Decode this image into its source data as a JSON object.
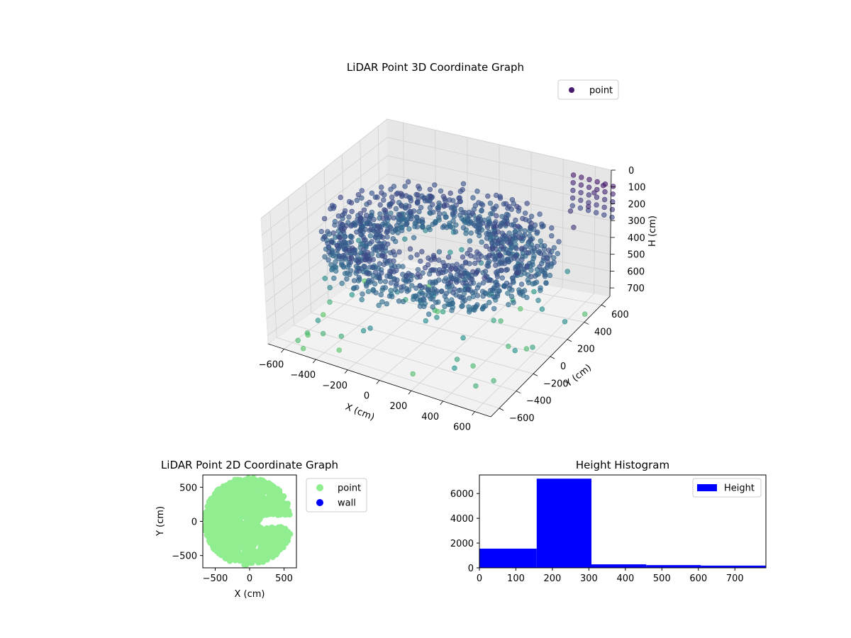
{
  "chart_data": [
    {
      "type": "scatter3d",
      "title": "LiDAR Point 3D Coordinate Graph",
      "xlabel": "X (cm)",
      "ylabel": "Y (cm)",
      "zlabel": "H (cm)",
      "x_ticks": [
        "−600",
        "−400",
        "−200",
        "0",
        "200",
        "400",
        "600"
      ],
      "y_ticks": [
        "−600",
        "−400",
        "−200",
        "0",
        "200",
        "400",
        "600"
      ],
      "z_ticks": [
        "0",
        "100",
        "200",
        "300",
        "400",
        "500",
        "600",
        "700"
      ],
      "xlim": [
        -650,
        650
      ],
      "ylim": [
        -650,
        650
      ],
      "zlim": [
        0,
        750
      ],
      "z_inverted": true,
      "legend": {
        "position": "top-right",
        "entries": [
          "point"
        ]
      },
      "grid": true,
      "colormap": "viridis-like (purple low height to teal high height)",
      "series": [
        {
          "name": "point",
          "description_points": "dense ring of points roughly radius 300-600 cm at heights 150-300 cm, plus sparse outliers up to 750 cm",
          "sample_points": [
            [
              -600,
              0,
              200
            ],
            [
              -550,
              200,
              180
            ],
            [
              -500,
              -250,
              210
            ],
            [
              -450,
              350,
              190
            ],
            [
              -300,
              500,
              200
            ],
            [
              -100,
              580,
              210
            ],
            [
              100,
              580,
              200
            ],
            [
              300,
              500,
              190
            ],
            [
              450,
              350,
              205
            ],
            [
              550,
              150,
              200
            ],
            [
              580,
              -100,
              210
            ],
            [
              500,
              -300,
              200
            ],
            [
              350,
              -480,
              190
            ],
            [
              100,
              -580,
              210
            ],
            [
              -150,
              -560,
              200
            ],
            [
              -400,
              -420,
              195
            ],
            [
              -200,
              100,
              300
            ],
            [
              0,
              0,
              280
            ],
            [
              200,
              -100,
              300
            ],
            [
              -100,
              -200,
              310
            ],
            [
              300,
              200,
              290
            ],
            [
              -300,
              -100,
              320
            ],
            [
              600,
              600,
              0
            ],
            [
              600,
              450,
              50
            ],
            [
              600,
              300,
              100
            ],
            [
              550,
              600,
              50
            ],
            [
              500,
              450,
              100
            ],
            [
              -500,
              -600,
              700
            ],
            [
              -300,
              -500,
              650
            ],
            [
              200,
              500,
              720
            ],
            [
              400,
              0,
              680
            ],
            [
              -600,
              300,
              740
            ],
            [
              0,
              300,
              600
            ],
            [
              300,
              -300,
              550
            ]
          ]
        }
      ]
    },
    {
      "type": "scatter",
      "title": "LiDAR Point 2D Coordinate Graph",
      "xlabel": "X (cm)",
      "ylabel": "Y (cm)",
      "x_ticks": [
        "−500",
        "0",
        "500"
      ],
      "y_ticks": [
        "500",
        "0",
        "−500"
      ],
      "xlim": [
        -680,
        680
      ],
      "ylim": [
        -680,
        680
      ],
      "legend": {
        "position": "right",
        "entries": [
          "point",
          "wall"
        ]
      },
      "series": [
        {
          "name": "point",
          "color": "#90ee90",
          "shape": "filled disk, radius ~600 cm, with open notch toward +X near y=0"
        },
        {
          "name": "wall",
          "color": "#0000ff",
          "points": []
        }
      ]
    },
    {
      "type": "bar",
      "title": "Height Histogram",
      "xlabel": "",
      "ylabel": "",
      "x_ticks": [
        "0",
        "100",
        "200",
        "300",
        "400",
        "500",
        "600",
        "700"
      ],
      "y_ticks": [
        "0",
        "2000",
        "4000",
        "6000"
      ],
      "xlim": [
        0,
        785
      ],
      "ylim": [
        0,
        7500
      ],
      "legend": {
        "position": "top-right",
        "entries": [
          "Height"
        ]
      },
      "bar_color": "#0000ff",
      "bins": [
        {
          "x0": 0,
          "x1": 157,
          "count": 1550
        },
        {
          "x0": 157,
          "x1": 307,
          "count": 7200
        },
        {
          "x0": 307,
          "x1": 457,
          "count": 280
        },
        {
          "x0": 457,
          "x1": 607,
          "count": 220
        },
        {
          "x0": 607,
          "x1": 785,
          "count": 180
        }
      ]
    }
  ]
}
